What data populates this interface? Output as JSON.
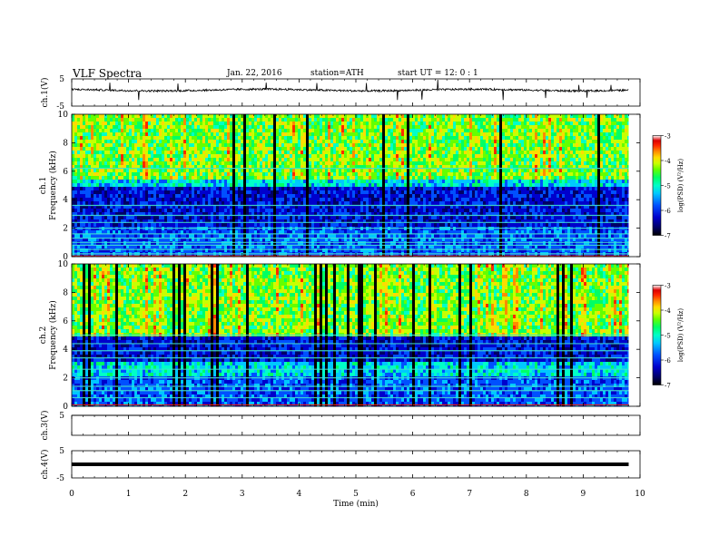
{
  "header": {
    "title": "VLF  Spectra",
    "date": "Jan. 22, 2016",
    "station": "station=ATH",
    "start": "start  UT  =    12: 0  : 1"
  },
  "colors": {
    "spectrum": [
      "#000000",
      "#000066",
      "#0000cc",
      "#0050ff",
      "#00c8ff",
      "#00ffc8",
      "#00ff64",
      "#64ff00",
      "#c8ff00",
      "#ffdc00",
      "#ff8c00",
      "#ff2800",
      "#dc0000",
      "#ffffff"
    ],
    "trace": "#000000",
    "axis": "#000000",
    "cyan_line": "#40e0d0",
    "red_line": "#ff2000"
  },
  "chart_data": [
    {
      "type": "line",
      "name": "ch1-time-series",
      "ylabel": "ch.1(V)",
      "ylim": [
        -5,
        5
      ],
      "yticks": [
        "5",
        "-5"
      ],
      "baseline": 0.9,
      "noise_amplitude": 0.35
    },
    {
      "type": "heatmap",
      "name": "ch1-spectrogram",
      "ylabel_channel": "ch.1",
      "ylabel": "Frequency  (kHz)",
      "ylim": [
        0,
        10
      ],
      "yticks": [
        "0",
        "2",
        "4",
        "6",
        "8",
        "10"
      ],
      "colorbar": {
        "label": "log(PSD) (V²/Hz)",
        "range": [
          -7,
          -3
        ],
        "ticks": [
          "-3",
          "-4",
          "-5",
          "-6",
          "-7"
        ]
      },
      "lines_khz": [
        0.05,
        0.2,
        0.5,
        0.8,
        1.0,
        1.3,
        1.6,
        2.0,
        2.4,
        2.9,
        3.6,
        6.2
      ],
      "dark_band_khz": [
        2.0,
        5.0
      ],
      "emission_band_khz": [
        5.5,
        10.0
      ]
    },
    {
      "type": "heatmap",
      "name": "ch2-spectrogram",
      "ylabel_channel": "ch.2",
      "ylabel": "Frequency  (kHz)",
      "ylim": [
        0,
        10
      ],
      "yticks": [
        "0",
        "2",
        "4",
        "6",
        "8",
        "10"
      ],
      "colorbar": {
        "label": "log(PSD) (V²/Hz)",
        "range": [
          -7,
          -3
        ],
        "ticks": [
          "-3",
          "-4",
          "-5",
          "-6",
          "-7"
        ]
      },
      "lines_khz": [
        0.1,
        0.6,
        1.1,
        1.4,
        2.0,
        2.6,
        3.4,
        3.9,
        4.4,
        5.0
      ],
      "dark_band_khz": [
        3.2,
        5.0
      ],
      "emission_band_khz": [
        5.0,
        10.0
      ]
    },
    {
      "type": "line",
      "name": "ch3-time-series",
      "ylabel": "ch.3(V)",
      "ylim": [
        -5,
        5
      ],
      "yticks": [
        "5"
      ],
      "baseline": 5
    },
    {
      "type": "line",
      "name": "ch4-time-series",
      "ylabel": "ch.4(V)",
      "ylim": [
        -5,
        5
      ],
      "yticks": [
        "5",
        "-5"
      ],
      "baseline": 0
    }
  ],
  "x_axis": {
    "label": "Time  (min)",
    "range": [
      0,
      10
    ],
    "ticks": [
      "0",
      "1",
      "2",
      "3",
      "4",
      "5",
      "6",
      "7",
      "8",
      "9",
      "10"
    ],
    "data_end_min": 9.8
  }
}
